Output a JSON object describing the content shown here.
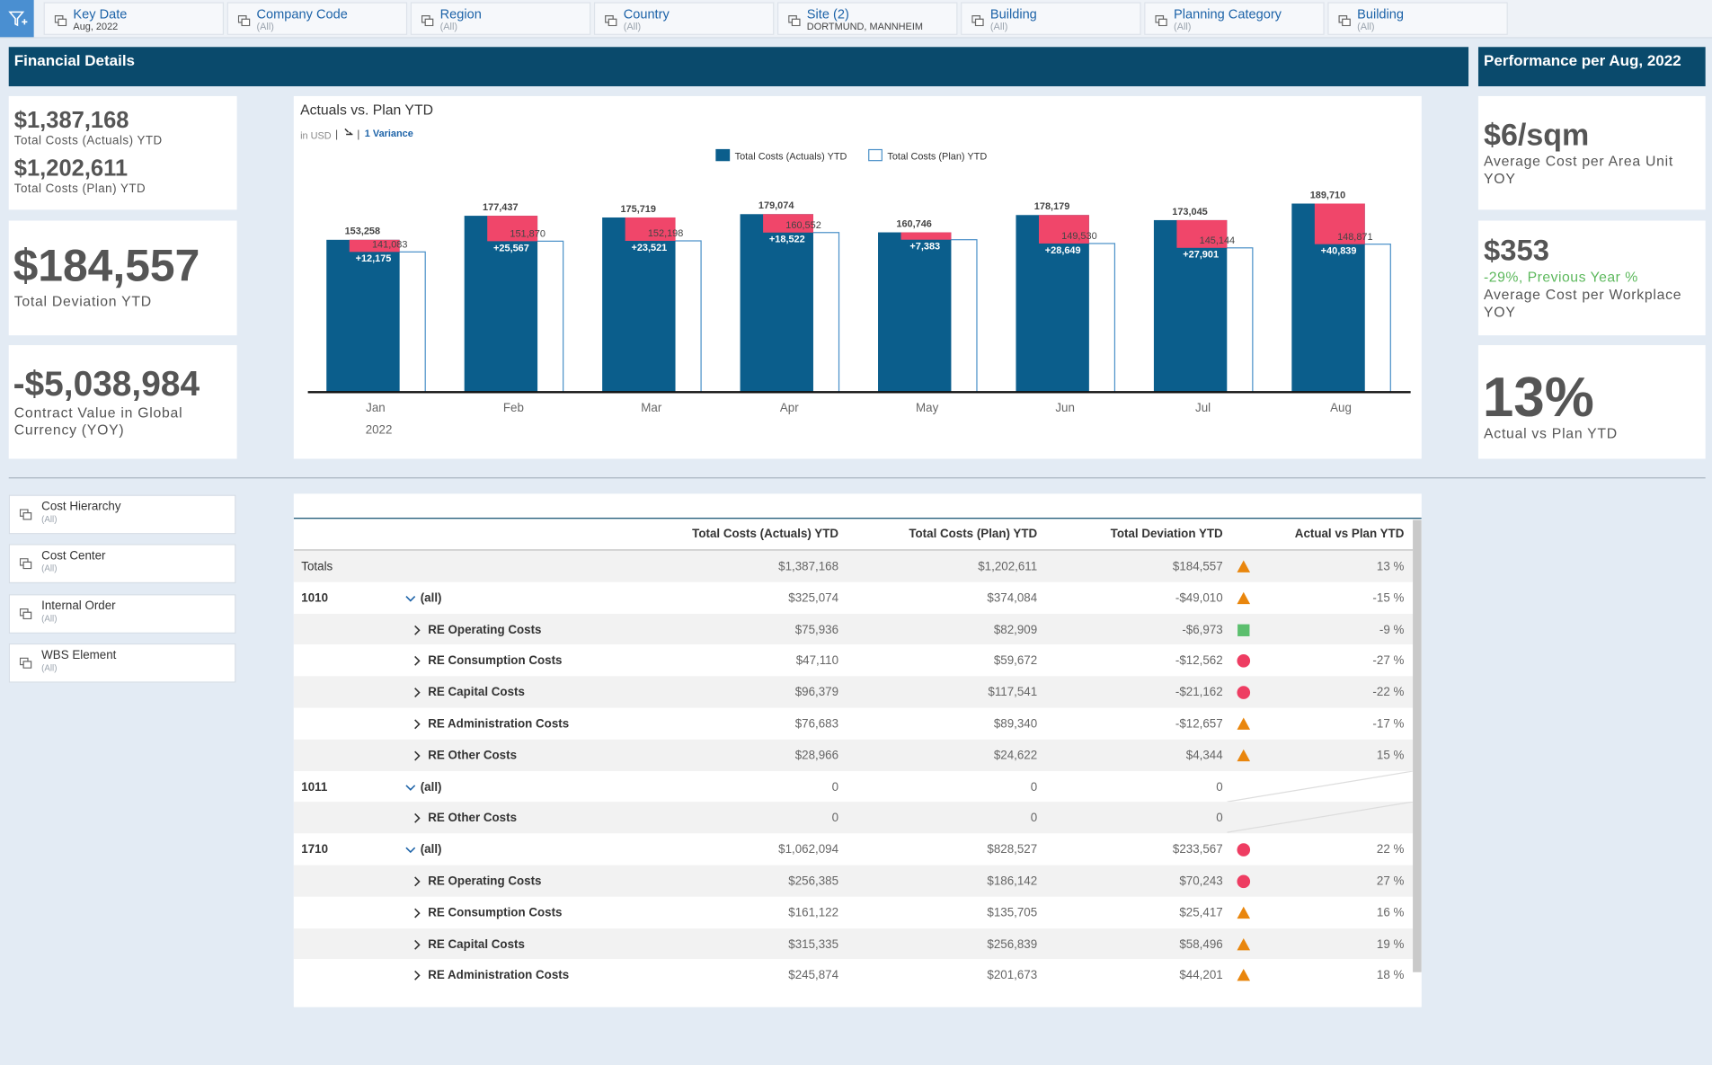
{
  "filters": [
    {
      "label": "Key Date",
      "value": "Aug, 2022"
    },
    {
      "label": "Company Code",
      "value": "(All)"
    },
    {
      "label": "Region",
      "value": "(All)"
    },
    {
      "label": "Country",
      "value": "(All)"
    },
    {
      "label": "Site (2)",
      "value": "DORTMUND, MANNHEIM"
    },
    {
      "label": "Building",
      "value": "(All)"
    },
    {
      "label": "Planning Category",
      "value": "(All)"
    },
    {
      "label": "Building",
      "value": "(All)"
    }
  ],
  "header": {
    "left": "Financial Details",
    "right": "Performance per Aug, 2022"
  },
  "kpis_left": {
    "actuals": {
      "value": "$1,387,168",
      "label": "Total Costs (Actuals) YTD"
    },
    "plan": {
      "value": "$1,202,611",
      "label": "Total Costs (Plan) YTD"
    },
    "deviation": {
      "value": "$184,557",
      "label": "Total Deviation YTD"
    },
    "contract": {
      "value": "-$5,038,984",
      "label": "Contract Value in Global Currency (YOY)"
    }
  },
  "kpis_right": {
    "area": {
      "value": "$6/sqm",
      "label": "Average Cost per Area Unit YOY"
    },
    "workplace": {
      "value": "$353",
      "change": "-29%, Previous Year %",
      "label": "Average Cost per Workplace YOY"
    },
    "ratio": {
      "value": "13%",
      "label": "Actual vs Plan YTD"
    }
  },
  "chart_data": {
    "type": "bar",
    "title": "Actuals vs. Plan YTD",
    "subtitle": "in USD",
    "variance_label": "1 Variance",
    "categories": [
      "Jan",
      "Feb",
      "Mar",
      "Apr",
      "May",
      "Jun",
      "Jul",
      "Aug"
    ],
    "year_label": "2022",
    "ylim": [
      0,
      200000
    ],
    "series": [
      {
        "name": "Total Costs (Actuals) YTD",
        "color": "#0b5e8c",
        "values": [
          153258,
          177437,
          175719,
          179074,
          160746,
          178179,
          173045,
          189710
        ],
        "value_labels": [
          "153,258",
          "177,437",
          "175,719",
          "179,074",
          "160,746",
          "178,179",
          "173,045",
          "189,710"
        ]
      },
      {
        "name": "Total Costs (Plan) YTD",
        "color": "#ffffff",
        "stroke": "#4a90c8",
        "values": [
          141083,
          151870,
          152198,
          160552,
          153363,
          149530,
          145144,
          148871
        ],
        "value_labels": [
          "141,083",
          "151,870",
          "152,198",
          "160,552",
          null,
          "149,530",
          "145,144",
          "148,871"
        ]
      }
    ],
    "variance": {
      "color": "#f0466a",
      "values": [
        12175,
        25567,
        23521,
        18522,
        7383,
        28649,
        27901,
        40839
      ],
      "value_labels": [
        "+12,175",
        "+25,567",
        "+23,521",
        "+18,522",
        "+7,383",
        "+28,649",
        "+27,901",
        "+40,839"
      ]
    }
  },
  "side_filters": [
    {
      "label": "Cost Hierarchy",
      "value": "(All)"
    },
    {
      "label": "Cost Center",
      "value": "(All)"
    },
    {
      "label": "Internal Order",
      "value": "(All)"
    },
    {
      "label": "WBS Element",
      "value": "(All)"
    }
  ],
  "table": {
    "columns": [
      "Total Costs (Actuals) YTD",
      "Total Costs (Plan) YTD",
      "Total Deviation YTD",
      "Actual vs Plan YTD"
    ],
    "rows": [
      {
        "label": "Totals",
        "actuals": "$1,387,168",
        "plan": "$1,202,611",
        "deviation": "$184,557",
        "status": "warning",
        "pct": "13 %"
      },
      {
        "code": "1010",
        "member": "(all)",
        "actuals": "$325,074",
        "plan": "$374,084",
        "deviation": "-$49,010",
        "status": "warning",
        "pct": "-15 %"
      },
      {
        "member": "RE Operating Costs",
        "actuals": "$75,936",
        "plan": "$82,909",
        "deviation": "-$6,973",
        "status": "ok",
        "pct": "-9 %"
      },
      {
        "member": "RE Consumption Costs",
        "actuals": "$47,110",
        "plan": "$59,672",
        "deviation": "-$12,562",
        "status": "critical",
        "pct": "-27 %"
      },
      {
        "member": "RE Capital Costs",
        "actuals": "$96,379",
        "plan": "$117,541",
        "deviation": "-$21,162",
        "status": "critical",
        "pct": "-22 %"
      },
      {
        "member": "RE Administration Costs",
        "actuals": "$76,683",
        "plan": "$89,340",
        "deviation": "-$12,657",
        "status": "warning",
        "pct": "-17 %"
      },
      {
        "member": "RE Other Costs",
        "actuals": "$28,966",
        "plan": "$24,622",
        "deviation": "$4,344",
        "status": "warning",
        "pct": "15 %"
      },
      {
        "code": "1011",
        "member": "(all)",
        "actuals": "0",
        "plan": "0",
        "deviation": "0"
      },
      {
        "member": "RE Other Costs",
        "actuals": "0",
        "plan": "0",
        "deviation": "0"
      },
      {
        "code": "1710",
        "member": "(all)",
        "actuals": "$1,062,094",
        "plan": "$828,527",
        "deviation": "$233,567",
        "status": "critical",
        "pct": "22 %"
      },
      {
        "member": "RE Operating Costs",
        "actuals": "$256,385",
        "plan": "$186,142",
        "deviation": "$70,243",
        "status": "critical",
        "pct": "27 %"
      },
      {
        "member": "RE Consumption Costs",
        "actuals": "$161,122",
        "plan": "$135,705",
        "deviation": "$25,417",
        "status": "warning",
        "pct": "16 %"
      },
      {
        "member": "RE Capital Costs",
        "actuals": "$315,335",
        "plan": "$256,839",
        "deviation": "$58,496",
        "status": "warning",
        "pct": "19 %"
      },
      {
        "member": "RE Administration Costs",
        "actuals": "$245,874",
        "plan": "$201,673",
        "deviation": "$44,201",
        "status": "warning",
        "pct": "18 %"
      }
    ]
  }
}
